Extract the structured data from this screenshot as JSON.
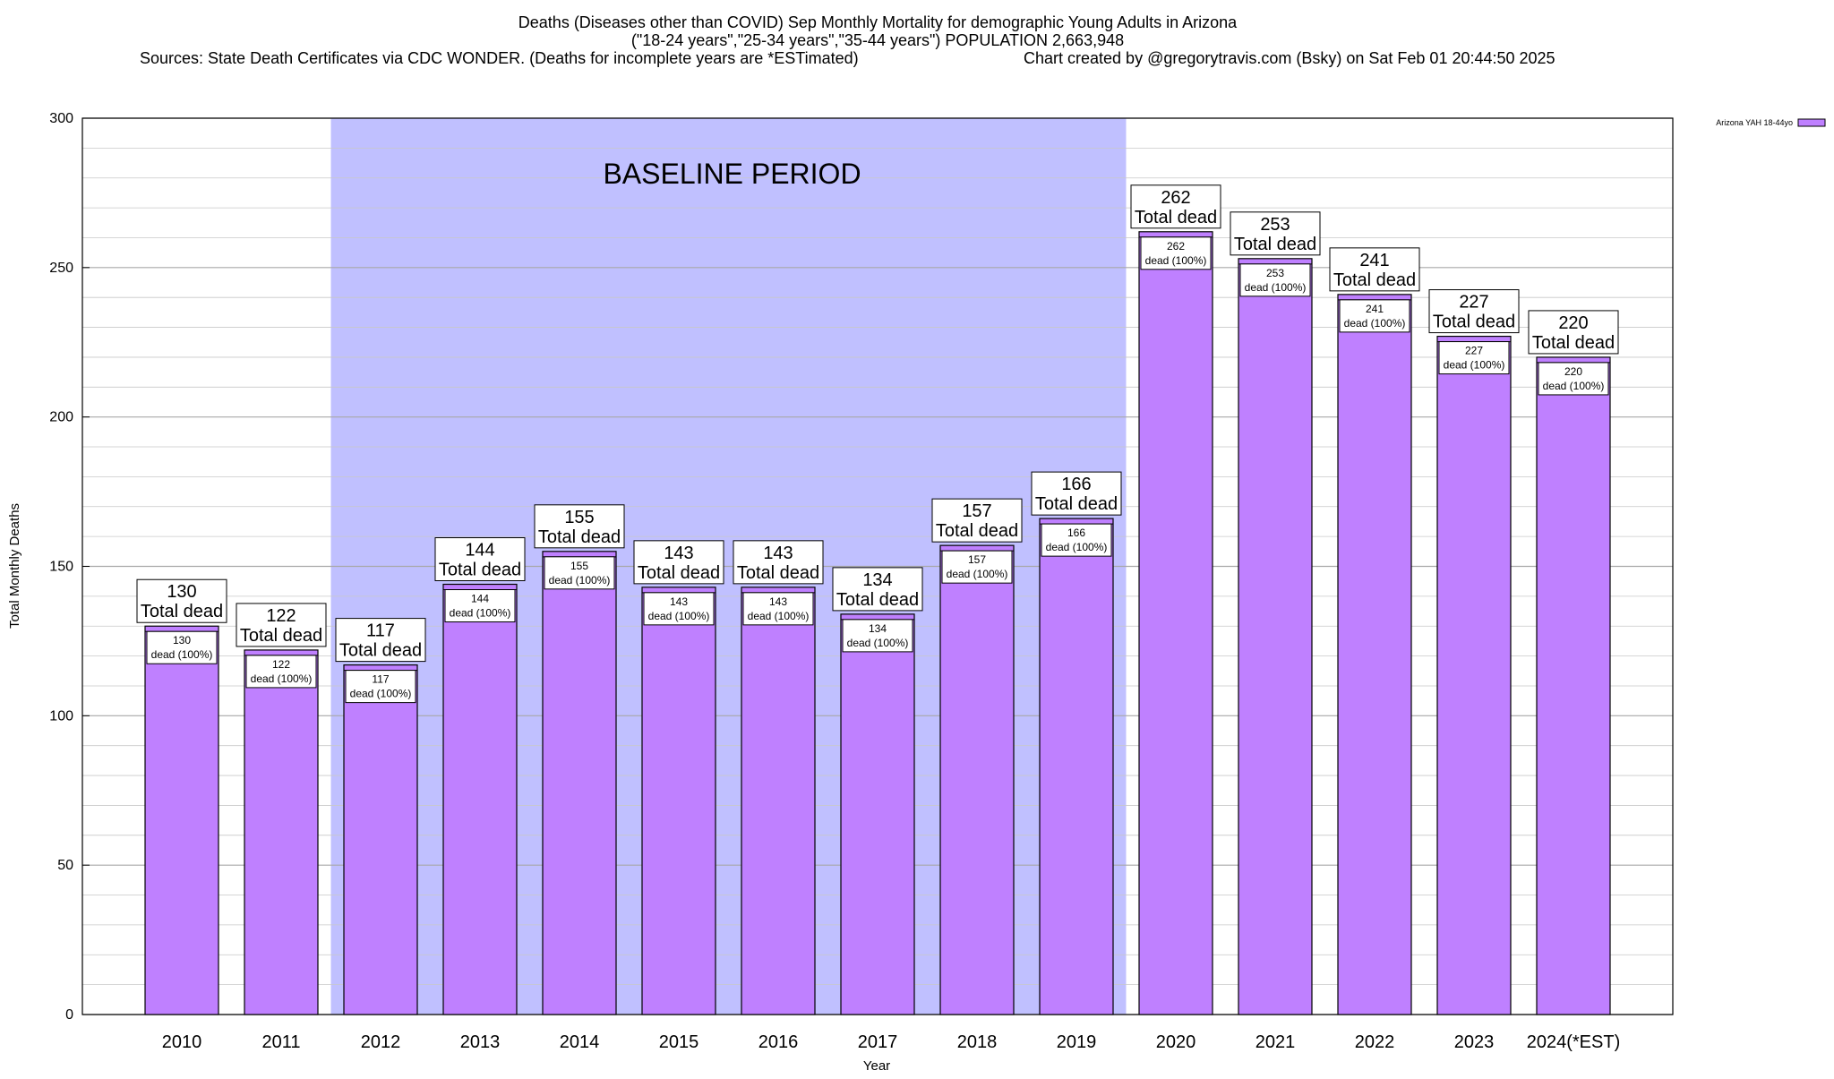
{
  "chart_data": {
    "type": "bar",
    "title_lines": [
      "Deaths (Diseases other than COVID) Sep Monthly Mortality for demographic Young Adults in Arizona",
      "(\"18-24 years\",\"25-34 years\",\"35-44 years\") POPULATION 2,663,948",
      "Sources: State Death Certificates via CDC WONDER. (Deaths for incomplete years are *ESTimated)"
    ],
    "credit": "Chart created by @gregorytravis.com (Bsky) on Sat Feb 01 20:44:50 2025",
    "xlabel": "Year",
    "ylabel": "Total Monthly Deaths",
    "ylim": [
      0,
      300
    ],
    "yticks": [
      0,
      50,
      100,
      150,
      200,
      250,
      300
    ],
    "minor_grid_step": 10,
    "grid": true,
    "legend": {
      "placement": "top-right",
      "entries": [
        {
          "name": "Arizona YAH 18-44yo",
          "color": "#bf80ff"
        }
      ]
    },
    "baseline": {
      "label": "BASELINE PERIOD",
      "from": "2012",
      "to": "2019",
      "color": "#c0c0ff"
    },
    "categories": [
      "2010",
      "2011",
      "2012",
      "2013",
      "2014",
      "2015",
      "2016",
      "2017",
      "2018",
      "2019",
      "2020",
      "2021",
      "2022",
      "2023",
      "2024(*EST)"
    ],
    "series": [
      {
        "name": "Arizona YAH 18-44yo",
        "color": "#bf80ff",
        "values": [
          130,
          122,
          117,
          144,
          155,
          143,
          143,
          134,
          157,
          166,
          262,
          253,
          241,
          227,
          220
        ]
      }
    ],
    "total_label": "Total dead",
    "segment_label": "dead (100%)"
  }
}
